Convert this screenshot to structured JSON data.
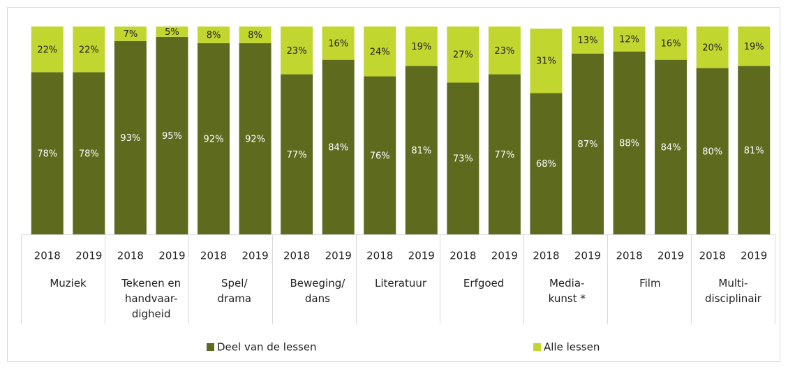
{
  "chart_data": {
    "type": "stacked_bar",
    "categories": [
      "2018",
      "2019",
      "2018",
      "2019",
      "2018",
      "2019",
      "2018",
      "2019",
      "2018",
      "2019",
      "2018",
      "2019",
      "2018",
      "2019",
      "2018",
      "2019",
      "2018",
      "2019"
    ],
    "groups": [
      [
        "Muziek"
      ],
      [
        "Tekenen en",
        "handvaar-",
        "digheid"
      ],
      [
        "Spel/",
        "drama"
      ],
      [
        "Beweging/",
        "dans"
      ],
      [
        "Literatuur"
      ],
      [
        "Erfgoed"
      ],
      [
        "Media-",
        "kunst *"
      ],
      [
        "Film"
      ],
      [
        "Multi-",
        "disciplinair"
      ]
    ],
    "series": [
      {
        "name": "Deel van de lessen",
        "color": "#5e6b1f",
        "values": [
          78,
          78,
          93,
          95,
          92,
          92,
          77,
          84,
          76,
          81,
          73,
          77,
          68,
          87,
          88,
          84,
          80,
          81
        ],
        "value_labels": [
          "78%",
          "78%",
          "93%",
          "95%",
          "92%",
          "92%",
          "77%",
          "84%",
          "76%",
          "81%",
          "73%",
          "77%",
          "68%",
          "87%",
          "88%",
          "84%",
          "80%",
          "81%"
        ]
      },
      {
        "name": "Alle lessen",
        "color": "#c2d630",
        "values": [
          22,
          22,
          7,
          5,
          8,
          8,
          23,
          16,
          24,
          19,
          27,
          23,
          31,
          13,
          12,
          16,
          20,
          19
        ],
        "value_labels": [
          "22%",
          "22%",
          "7%",
          "5%",
          "8%",
          "8%",
          "23%",
          "16%",
          "24%",
          "19%",
          "27%",
          "23%",
          "31%",
          "13%",
          "12%",
          "16%",
          "20%",
          "19%"
        ]
      }
    ],
    "ylim": [
      0,
      100
    ],
    "legend": "bottom"
  }
}
